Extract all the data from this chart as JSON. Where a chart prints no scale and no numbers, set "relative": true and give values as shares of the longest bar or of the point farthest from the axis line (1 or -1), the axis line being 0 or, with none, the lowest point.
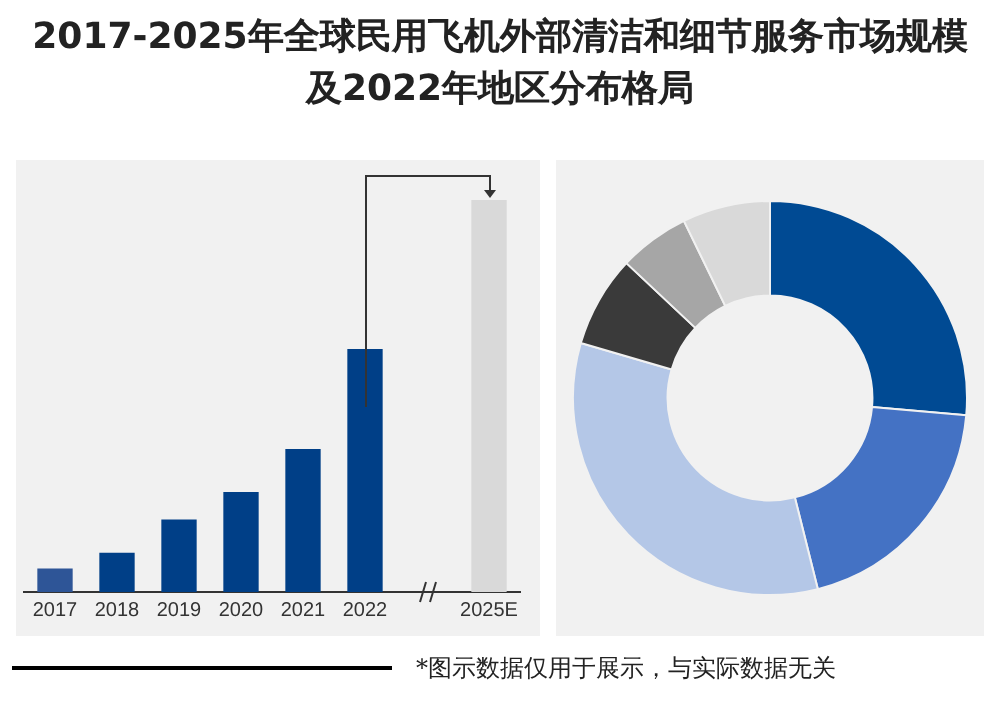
{
  "chart_data": [
    {
      "type": "bar",
      "title": "2017-2025年全球民用飞机外部清洁和细节服务市场规模及2022年地区分布格局",
      "relative": true,
      "categories": [
        "2017",
        "2018",
        "2019",
        "2020",
        "2021",
        "2022",
        null,
        "2025E"
      ],
      "values": [
        0.06,
        0.1,
        0.185,
        0.255,
        0.365,
        0.62,
        null,
        1
      ],
      "colors": [
        "#2e5597",
        "#003f87",
        "#003f87",
        "#003f87",
        "#003f87",
        "#003f87",
        "#003f87",
        "#d9d9d9"
      ],
      "annotations": [
        "*图示数据仅用于展示，与实际数据无关"
      ],
      "grid": false,
      "legend": false
    },
    {
      "type": "donut",
      "categories": [
        null,
        null,
        null,
        null,
        null,
        null
      ],
      "values": [
        26.4,
        19.7,
        33.4,
        7.5,
        5.8,
        7.2
      ],
      "colors": [
        "#004a93",
        "#4472c4",
        "#b4c7e7",
        "#3a3a3a",
        "#a6a6a6",
        "#d9d9d9"
      ],
      "legend": false
    }
  ]
}
